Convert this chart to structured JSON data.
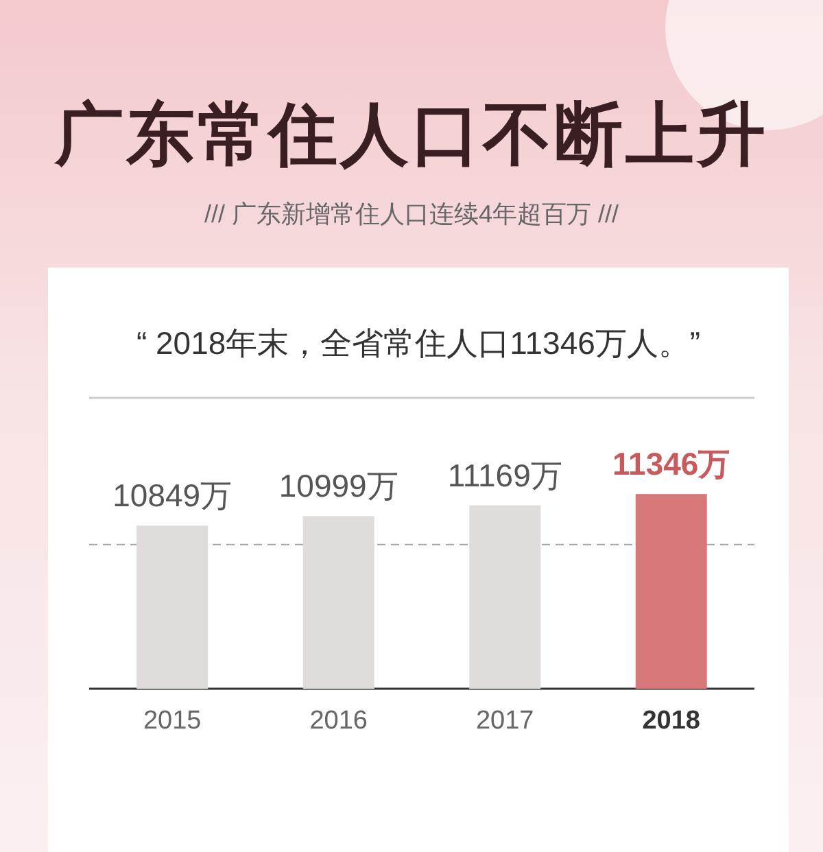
{
  "chart_data": {
    "type": "bar",
    "title": "广东常住人口不断上升",
    "subtitle": "/// 广东新增常住人口连续4年超百万 ///",
    "annotations": [
      "“ 2018年末，全省常住人口11346万人。”"
    ],
    "categories": [
      "2015",
      "2016",
      "2017",
      "2018"
    ],
    "values": [
      10849,
      10999,
      11169,
      11346
    ],
    "colors": [
      "#e0dcdc",
      "#e0dcdc",
      "#e0dcdc",
      "#d9787a"
    ],
    "value_labels": [
      "10849万",
      "10999万",
      "11169万",
      "11346万"
    ],
    "ylim": [
      8280,
      12860
    ],
    "ref_lines": [
      {
        "axis": "y",
        "value": 10550,
        "line_style": "dashed",
        "color": "#aaaaaa"
      }
    ]
  }
}
